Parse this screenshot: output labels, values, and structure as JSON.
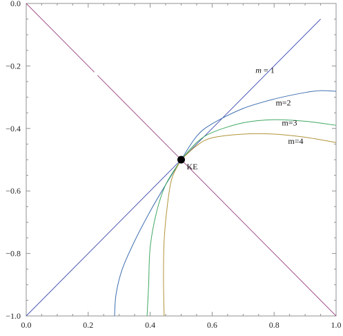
{
  "chart_data": {
    "type": "line",
    "title": "",
    "xlabel": "",
    "ylabel": "",
    "xlim": [
      0,
      1
    ],
    "ylim": [
      -1,
      0
    ],
    "x_ticks": [
      "0.0",
      "0.2",
      "0.4",
      "0.6",
      "0.8",
      "1.0"
    ],
    "y_ticks": [
      "0.0",
      "-0.2",
      "-0.4",
      "-0.6",
      "-0.8",
      "-1.0"
    ],
    "grid": false,
    "colors": {
      "frame": "#8f8f8f",
      "diagonal": "#a0508a",
      "m1": "#4a56b4",
      "m2": "#3e6fb0",
      "m3": "#3ea860",
      "m4": "#b09438",
      "point": "#000000"
    },
    "point": {
      "x": 0.5,
      "y": -0.5,
      "label": "KE"
    },
    "series": [
      {
        "key": "diagonal",
        "points": [
          [
            0.0,
            0.0
          ],
          [
            0.22,
            -0.22
          ],
          [
            0.23,
            -0.23
          ],
          [
            0.5,
            -0.5
          ],
          [
            1.0,
            -1.0
          ]
        ]
      },
      {
        "key": "m1",
        "name_parts": [
          "m",
          " = 1"
        ],
        "points": [
          [
            0.0,
            -1.0
          ],
          [
            0.5,
            -0.5
          ],
          [
            0.95,
            -0.05
          ]
        ]
      },
      {
        "key": "m2",
        "name_parts": [
          "m=2"
        ],
        "points": [
          [
            0.5,
            -0.5
          ],
          [
            0.55,
            -0.425
          ],
          [
            0.6,
            -0.385
          ],
          [
            0.7,
            -0.336
          ],
          [
            0.8,
            -0.306
          ],
          [
            0.9,
            -0.285
          ],
          [
            0.95,
            -0.279
          ],
          [
            1.0,
            -0.281
          ],
          [
            0.5,
            -0.5
          ],
          [
            0.45,
            -0.58
          ],
          [
            0.4,
            -0.665
          ],
          [
            0.35,
            -0.76
          ],
          [
            0.31,
            -0.85
          ],
          [
            0.29,
            -0.93
          ],
          [
            0.285,
            -1.0
          ]
        ]
      },
      {
        "key": "m3",
        "name_parts": [
          "m=3"
        ],
        "points": [
          [
            0.5,
            -0.5
          ],
          [
            0.55,
            -0.445
          ],
          [
            0.6,
            -0.413
          ],
          [
            0.7,
            -0.382
          ],
          [
            0.8,
            -0.372
          ],
          [
            0.9,
            -0.377
          ],
          [
            1.0,
            -0.39
          ],
          [
            0.5,
            -0.5
          ],
          [
            0.45,
            -0.58
          ],
          [
            0.42,
            -0.67
          ],
          [
            0.4,
            -0.78
          ],
          [
            0.395,
            -0.9
          ],
          [
            0.39,
            -1.0
          ]
        ]
      },
      {
        "key": "m4",
        "name_parts": [
          "m=4"
        ],
        "points": [
          [
            0.5,
            -0.5
          ],
          [
            0.55,
            -0.455
          ],
          [
            0.6,
            -0.43
          ],
          [
            0.7,
            -0.418
          ],
          [
            0.8,
            -0.418
          ],
          [
            0.9,
            -0.428
          ],
          [
            1.0,
            -0.445
          ],
          [
            0.5,
            -0.5
          ],
          [
            0.47,
            -0.56
          ],
          [
            0.455,
            -0.65
          ],
          [
            0.445,
            -0.76
          ],
          [
            0.443,
            -0.88
          ],
          [
            0.445,
            -1.0
          ]
        ]
      }
    ],
    "annotations": [
      {
        "key": "m1",
        "x": 0.74,
        "y": -0.214,
        "text_parts": [
          "m",
          " = 1"
        ],
        "italic_first": true
      },
      {
        "key": "m2",
        "x": 0.805,
        "y": -0.318,
        "text_parts": [
          "m=2"
        ],
        "italic_first": false
      },
      {
        "key": "m3",
        "x": 0.825,
        "y": -0.382,
        "text_parts": [
          "m=3"
        ],
        "italic_first": false
      },
      {
        "key": "m4",
        "x": 0.845,
        "y": -0.44,
        "text_parts": [
          "m=4"
        ],
        "italic_first": false
      }
    ]
  }
}
